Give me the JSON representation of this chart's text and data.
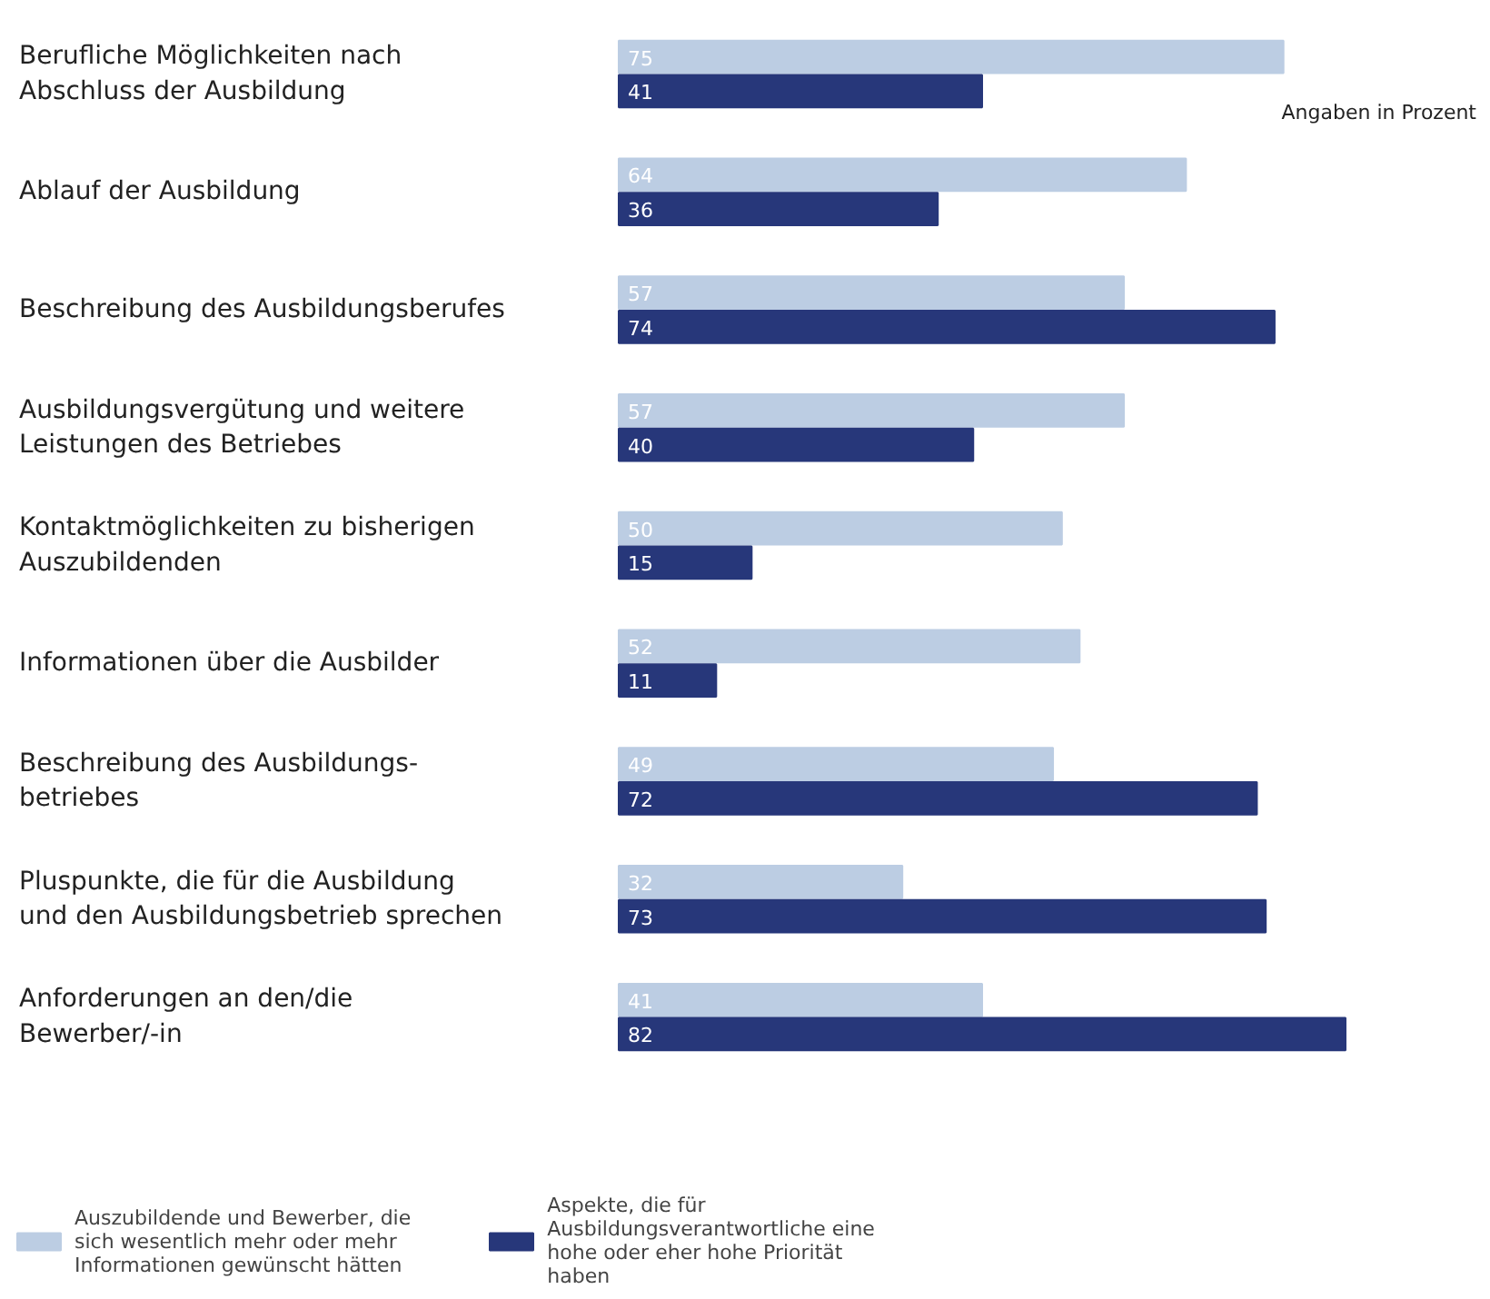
{
  "chart_data": {
    "type": "bar",
    "orientation": "horizontal",
    "data_labels": true,
    "legend": "bottom",
    "categories": [
      "Berufliche Möglichkeiten nach Abschluss der Ausbildung",
      "Ablauf der Ausbildung",
      "Beschreibung des Ausbildungsberufes",
      "Ausbildungsvergütung und weitere Leistungen des Betriebes",
      "Kontaktmöglichkeiten zu bisherigen Auszubildenden",
      "Informationen über die Ausbilder",
      "Beschreibung des Ausbildungs-betriebes",
      "Pluspunkte, die für die Ausbildung und den Ausbildungsbetrieb sprechen",
      "Anforderungen an den/die Bewerber/-in"
    ],
    "series": [
      {
        "name": "Auszubildende und Bewerber, die sich wesentlich mehr oder mehr Informationen gewünscht hätten",
        "color": "#bccde3",
        "values": [
          75,
          64,
          57,
          57,
          50,
          52,
          49,
          32,
          41
        ]
      },
      {
        "name": "Aspekte, die für Ausbildungsverantwortliche eine hohe oder eher hohe Priorität haben",
        "color": "#27377a",
        "values": [
          41,
          36,
          74,
          40,
          15,
          11,
          72,
          73,
          82
        ]
      }
    ],
    "annotations": [
      "Angaben in Prozent"
    ]
  }
}
